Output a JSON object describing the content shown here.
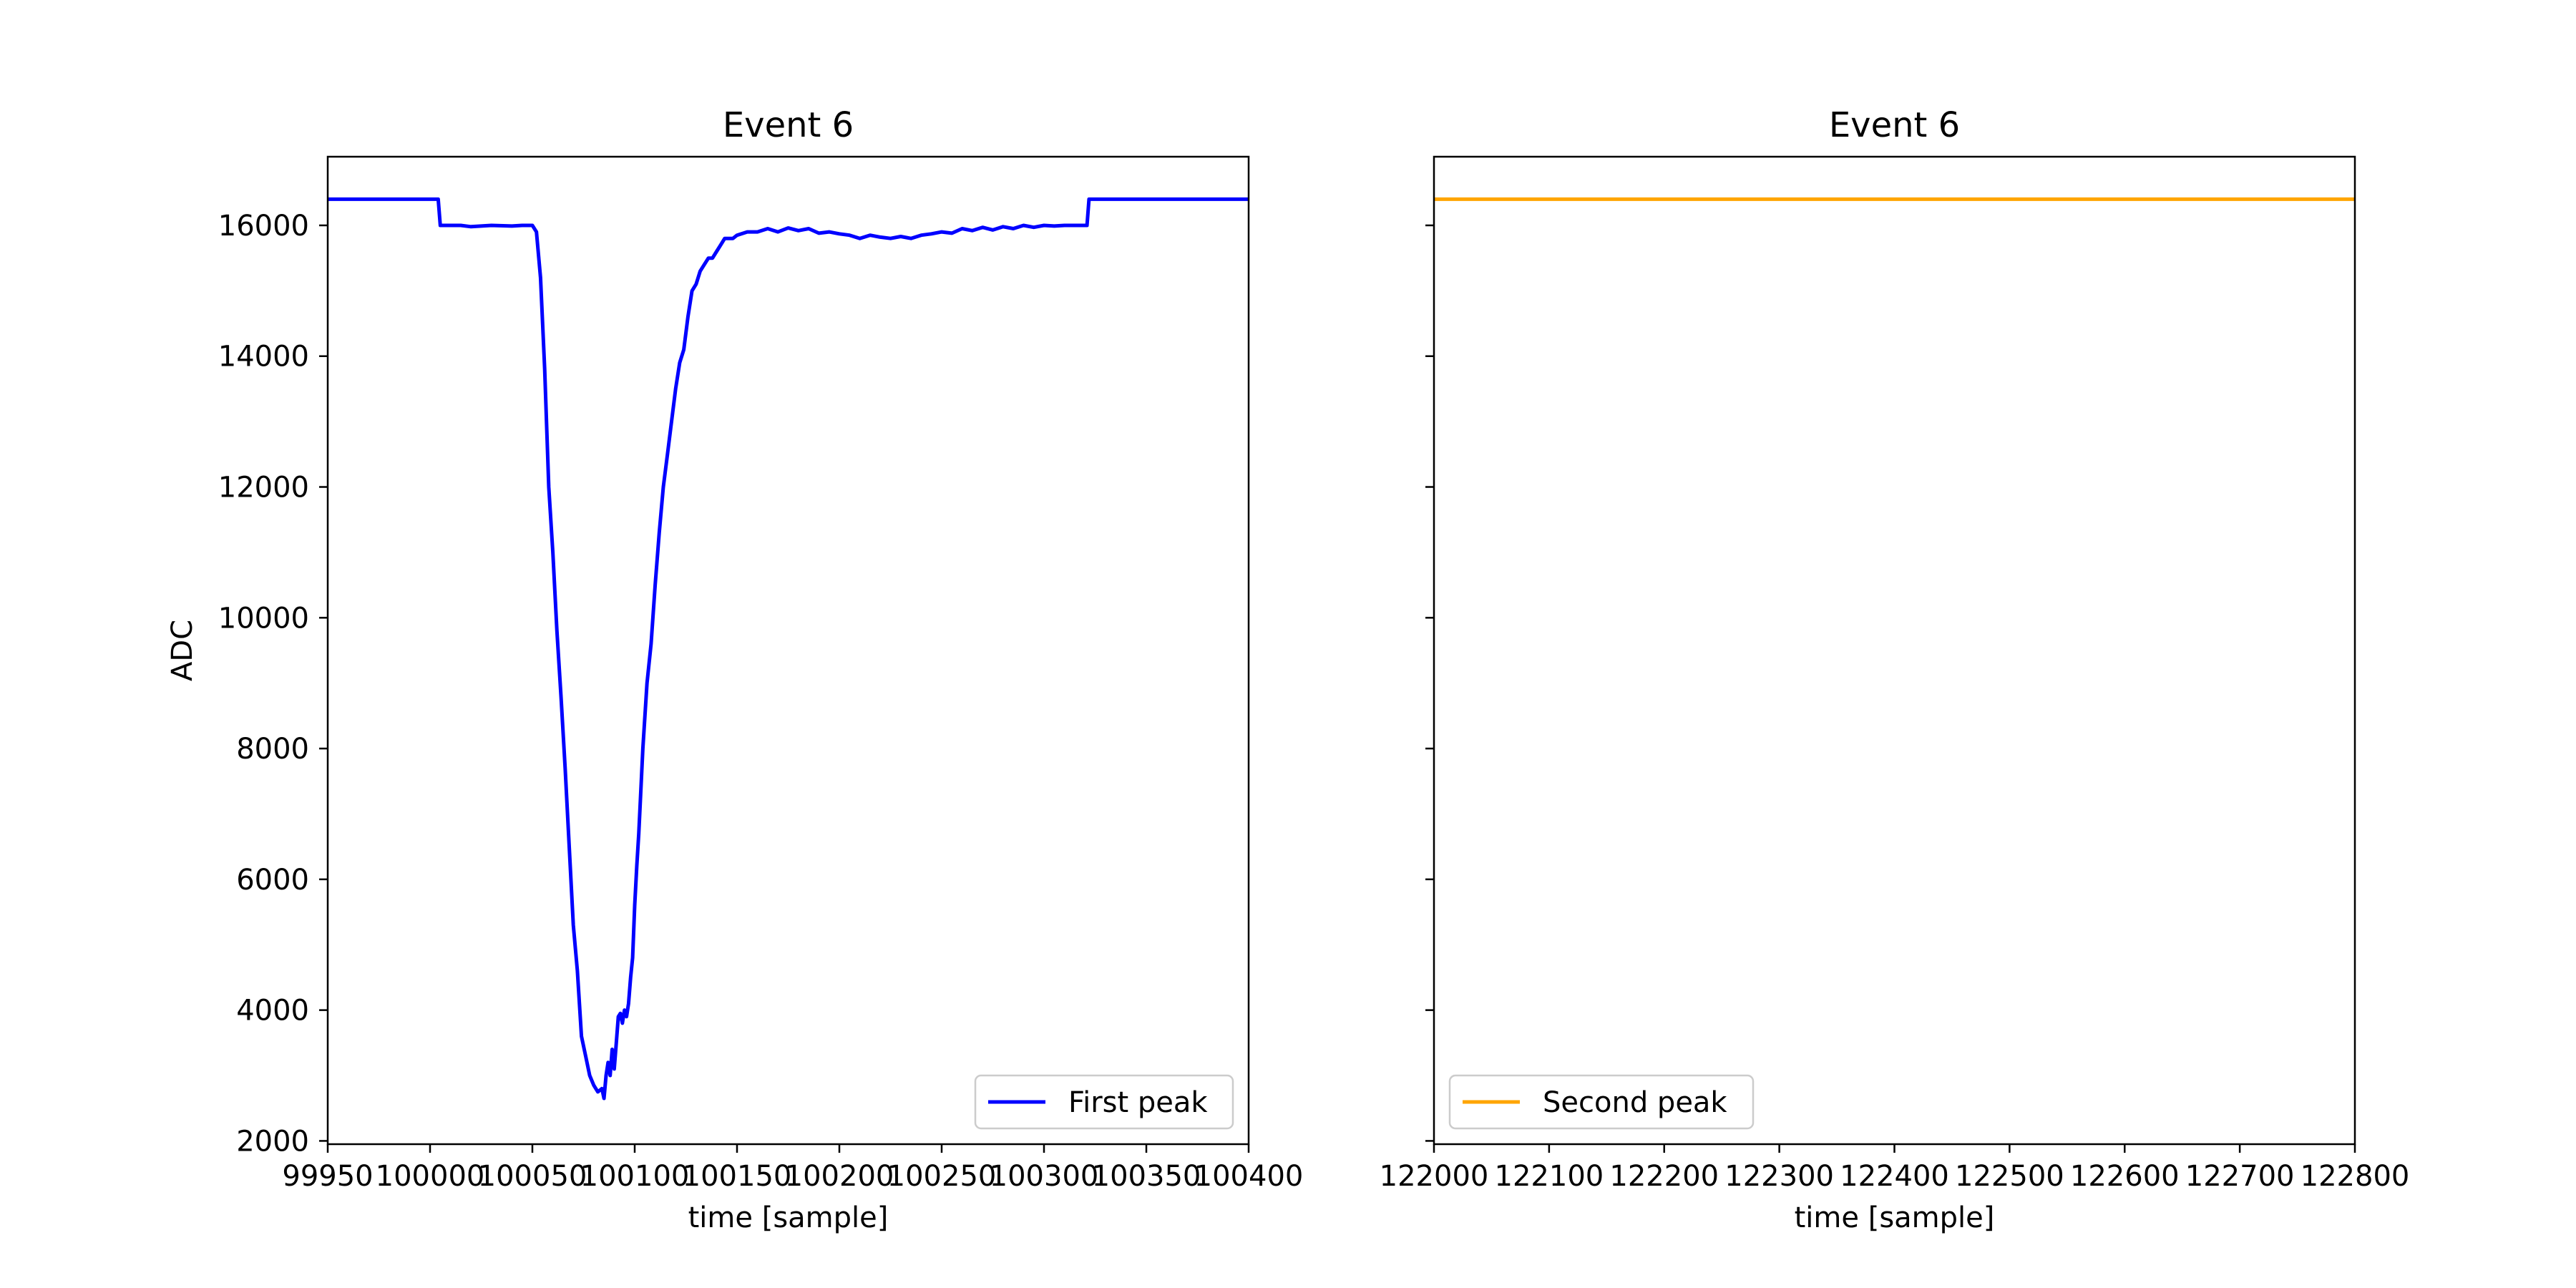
{
  "chart_data": [
    {
      "type": "line",
      "title": "Event 6",
      "xlabel": "time [sample]",
      "ylabel": "ADC",
      "xlim": [
        99950,
        100400
      ],
      "ylim": [
        1950,
        17050
      ],
      "xticks": [
        99950,
        100000,
        100050,
        100100,
        100150,
        100200,
        100250,
        100300,
        100350,
        100400
      ],
      "xtick_labels": [
        "99950",
        "100000",
        "100050",
        "100100",
        "100150",
        "100200",
        "100250",
        "100300",
        "100350",
        "100400"
      ],
      "yticks": [
        2000,
        4000,
        6000,
        8000,
        10000,
        12000,
        14000,
        16000
      ],
      "ytick_labels": [
        "2000",
        "4000",
        "6000",
        "8000",
        "10000",
        "12000",
        "14000",
        "16000"
      ],
      "grid": false,
      "legend_position": "lower right",
      "series": [
        {
          "name": "First peak",
          "color": "#0000ff",
          "x": [
            99950,
            99960,
            99970,
            99980,
            99990,
            100000,
            100004,
            100005,
            100010,
            100015,
            100020,
            100030,
            100040,
            100045,
            100050,
            100052,
            100054,
            100056,
            100058,
            100060,
            100062,
            100064,
            100066,
            100068,
            100070,
            100072,
            100074,
            100076,
            100078,
            100080,
            100082,
            100084,
            100085,
            100086,
            100087,
            100088,
            100089,
            100090,
            100091,
            100092,
            100093,
            100094,
            100095,
            100096,
            100097,
            100098,
            100099,
            100100,
            100101,
            100102,
            100104,
            100106,
            100108,
            100110,
            100112,
            100114,
            100116,
            100118,
            100120,
            100122,
            100124,
            100126,
            100128,
            100130,
            100132,
            100134,
            100136,
            100138,
            100140,
            100142,
            100144,
            100146,
            100148,
            100150,
            100155,
            100160,
            100165,
            100170,
            100175,
            100180,
            100185,
            100190,
            100195,
            100200,
            100205,
            100210,
            100215,
            100220,
            100225,
            100230,
            100235,
            100240,
            100245,
            100250,
            100255,
            100260,
            100265,
            100270,
            100275,
            100280,
            100285,
            100290,
            100295,
            100300,
            100305,
            100310,
            100315,
            100320,
            100321,
            100322,
            100330,
            100340,
            100350,
            100360,
            100370,
            100380,
            100390,
            100400
          ],
          "values": [
            16400,
            16400,
            16400,
            16400,
            16400,
            16400,
            16400,
            16000,
            16000,
            16000,
            15980,
            16000,
            15990,
            16000,
            16000,
            15900,
            15200,
            13800,
            12000,
            11000,
            9800,
            8800,
            7700,
            6500,
            5300,
            4600,
            3600,
            3300,
            3000,
            2850,
            2750,
            2800,
            2650,
            3000,
            3200,
            3000,
            3400,
            3100,
            3500,
            3900,
            3950,
            3800,
            4000,
            3900,
            4100,
            4500,
            4800,
            5600,
            6200,
            6700,
            8000,
            9000,
            9600,
            10500,
            11300,
            12000,
            12500,
            13000,
            13500,
            13900,
            14100,
            14600,
            15000,
            15100,
            15300,
            15400,
            15500,
            15500,
            15600,
            15700,
            15800,
            15800,
            15800,
            15850,
            15900,
            15900,
            15950,
            15900,
            15960,
            15920,
            15950,
            15880,
            15900,
            15870,
            15850,
            15800,
            15850,
            15820,
            15800,
            15830,
            15800,
            15850,
            15870,
            15900,
            15880,
            15950,
            15920,
            15970,
            15930,
            15980,
            15950,
            16000,
            15970,
            16000,
            15990,
            16000,
            16000,
            16000,
            16000,
            16400,
            16400,
            16400,
            16400,
            16400,
            16400,
            16400,
            16400,
            16400
          ]
        }
      ]
    },
    {
      "type": "line",
      "title": "Event 6",
      "xlabel": "time [sample]",
      "ylabel": "",
      "xlim": [
        122000,
        122800
      ],
      "ylim": [
        1950,
        17050
      ],
      "xticks": [
        122000,
        122100,
        122200,
        122300,
        122400,
        122500,
        122600,
        122700,
        122800
      ],
      "xtick_labels": [
        "122000",
        "122100",
        "122200",
        "122300",
        "122400",
        "122500",
        "122600",
        "122700",
        "122800"
      ],
      "yticks": [
        2000,
        4000,
        6000,
        8000,
        10000,
        12000,
        14000,
        16000
      ],
      "ytick_labels": [
        "",
        "",
        "",
        "",
        "",
        "",
        "",
        ""
      ],
      "grid": false,
      "legend_position": "lower left",
      "series": [
        {
          "name": "Second peak",
          "color": "#ffa500",
          "x": [
            122000,
            122800
          ],
          "values": [
            16400,
            16400
          ]
        }
      ]
    }
  ]
}
